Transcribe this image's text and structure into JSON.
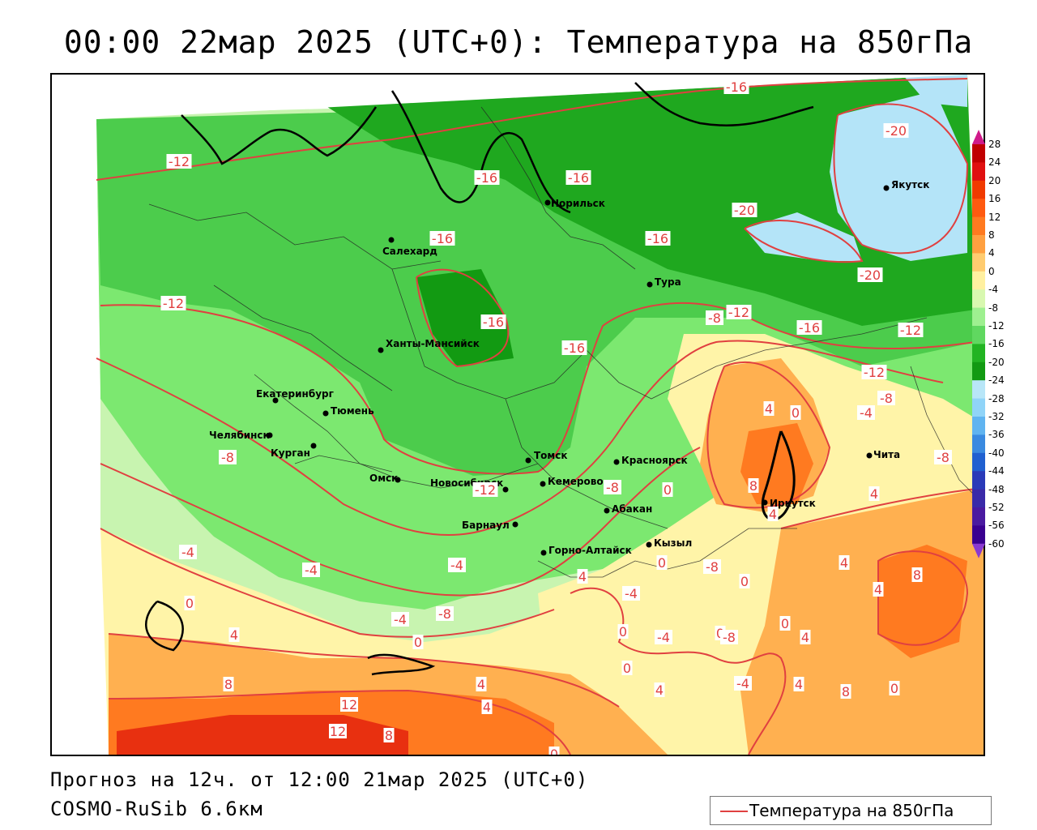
{
  "title": "00:00 22мар 2025 (UTC+0): Температура на 850гПа",
  "footer": {
    "forecast_line": "Прогноз на 12ч. от 12:00 21мар 2025 (UTC+0)",
    "model_line": "COSMO-RuSib 6.6км"
  },
  "legend": {
    "label": "Температура на 850гПа",
    "line_color": "#e04040"
  },
  "colorbar": {
    "ticks": [
      "28",
      "24",
      "20",
      "16",
      "12",
      "8",
      "4",
      "0",
      "-4",
      "-8",
      "-12",
      "-16",
      "-20",
      "-24",
      "-28",
      "-32",
      "-36",
      "-40",
      "-44",
      "-48",
      "-52",
      "-56",
      "-60"
    ],
    "colors": [
      "#c00000",
      "#e01010",
      "#f03a00",
      "#ff5a10",
      "#ff7a20",
      "#ffa040",
      "#ffcc70",
      "#fff0a0",
      "#d8f8b0",
      "#9ef090",
      "#60d860",
      "#22b422",
      "#129a12",
      "#b8e6f8",
      "#90d4f8",
      "#60b4f0",
      "#3a8ae0",
      "#2060d0",
      "#2a3ab8",
      "#3a2aa8",
      "#4a1aa0",
      "#3a0090"
    ],
    "top_arrow_color": "#d01a8a",
    "bottom_arrow_color": "#8a3ad0"
  },
  "cities": [
    {
      "name": "Салехард"
    },
    {
      "name": "Норильск"
    },
    {
      "name": "Якутск"
    },
    {
      "name": "Тура"
    },
    {
      "name": "Ханты-Мансийск"
    },
    {
      "name": "Екатеринбург"
    },
    {
      "name": "Тюмень"
    },
    {
      "name": "Челябинск"
    },
    {
      "name": "Курган"
    },
    {
      "name": "Омск"
    },
    {
      "name": "Новосибирск"
    },
    {
      "name": "Томск"
    },
    {
      "name": "Кемерово"
    },
    {
      "name": "Красноярск"
    },
    {
      "name": "Абакан"
    },
    {
      "name": "Барнаул"
    },
    {
      "name": "Горно-Алтайск"
    },
    {
      "name": "Кызыл"
    },
    {
      "name": "Иркутск"
    },
    {
      "name": "Чита"
    }
  ],
  "contour_labels": [
    "-16",
    "-20",
    "-12",
    "-16",
    "-16",
    "-16",
    "-20",
    "-16",
    "-20",
    "-12",
    "-16",
    "-12",
    "-8",
    "-12",
    "-16",
    "-16",
    "-12",
    "-8",
    "-4",
    "-8",
    "-12",
    "-8",
    "-8",
    "0",
    "4",
    "0",
    "8",
    "4",
    "-4",
    "-4",
    "-8",
    "0",
    "-4",
    "-4",
    "0",
    "4",
    "4",
    "8",
    "12",
    "12",
    "8",
    "4",
    "0",
    "0",
    "-4",
    "0",
    "0",
    "4",
    "4",
    "0",
    "4",
    "4",
    "4",
    "4",
    "8",
    "0",
    "-8",
    "-4",
    "-8",
    "4",
    "8",
    "0",
    "0",
    "-4"
  ],
  "colors": {
    "contour": "#e04040",
    "land_green_light": "#c8f4b0",
    "land_green_mid": "#7ce870",
    "land_green": "#4ccc4c",
    "land_green_dark": "#1fa81f",
    "cold_blue": "#b4e4f8",
    "warm_yellow": "#fff4a8",
    "warm_orange": "#ffb050",
    "hot_orange": "#ff7a20",
    "hot_red": "#e83010"
  }
}
